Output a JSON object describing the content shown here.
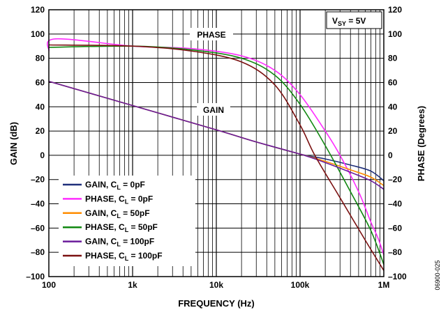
{
  "chart_data": {
    "type": "line",
    "xlabel": "FREQUENCY (Hz)",
    "ylabel_left": "GAIN (dB)",
    "ylabel_right": "PHASE (Degrees)",
    "x_scale": "log",
    "xlim": [
      100,
      1000000
    ],
    "ylim": [
      -100,
      120
    ],
    "grid": true,
    "x_ticks": [
      {
        "value": 100,
        "label": "100"
      },
      {
        "value": 1000,
        "label": "1k"
      },
      {
        "value": 10000,
        "label": "10k"
      },
      {
        "value": 100000,
        "label": "100k"
      },
      {
        "value": 1000000,
        "label": "1M"
      }
    ],
    "y_ticks_left": [
      "120",
      "100",
      "80",
      "60",
      "40",
      "20",
      "0",
      "–20",
      "–40",
      "–60",
      "–80",
      "–100"
    ],
    "y_ticks_right": [
      "120",
      "100",
      "80",
      "60",
      "40",
      "20",
      "0",
      "–20",
      "–40",
      "–60",
      "–80",
      "–100"
    ],
    "y_tick_values": [
      120,
      100,
      80,
      60,
      40,
      20,
      0,
      -20,
      -40,
      -60,
      -80,
      -100
    ],
    "annotations": {
      "condition": "VSY = 5V",
      "phase_label": "PHASE",
      "gain_label": "GAIN",
      "figure_id": "06900-025"
    },
    "legend_position": "bottom-left",
    "series": [
      {
        "name": "GAIN, CL = 0pF",
        "color": "#1f2f7a",
        "x": [
          100,
          1000,
          10000,
          30000,
          100000,
          200000,
          400000,
          700000,
          1000000
        ],
        "y": [
          61,
          41,
          21,
          11,
          1,
          -3,
          -8,
          -13,
          -21
        ]
      },
      {
        "name": "PHASE, CL = 0pF",
        "color": "#ff2bff",
        "x": [
          100,
          120,
          1000,
          5000,
          20000,
          50000,
          100000,
          200000,
          300000,
          500000,
          700000,
          850000,
          1000000
        ],
        "y": [
          86,
          96,
          90,
          88,
          82,
          70,
          50,
          20,
          0,
          -30,
          -55,
          -68,
          -82
        ]
      },
      {
        "name": "GAIN, CL = 50pF",
        "color": "#ff8c00",
        "x": [
          100,
          1000,
          10000,
          30000,
          100000,
          200000,
          400000,
          700000,
          1000000
        ],
        "y": [
          61,
          41,
          21,
          11,
          1,
          -5,
          -12,
          -18,
          -25
        ]
      },
      {
        "name": "PHASE, CL = 50pF",
        "color": "#118811",
        "x": [
          100,
          1000,
          5000,
          20000,
          50000,
          100000,
          200000,
          400000,
          700000,
          1000000
        ],
        "y": [
          89,
          90,
          87,
          80,
          66,
          42,
          8,
          -30,
          -62,
          -90
        ]
      },
      {
        "name": "GAIN, CL = 100pF",
        "color": "#6a1b9a",
        "x": [
          100,
          1000,
          10000,
          30000,
          100000,
          200000,
          400000,
          700000,
          1000000
        ],
        "y": [
          61,
          41,
          21,
          11,
          1,
          -6,
          -14,
          -21,
          -28
        ]
      },
      {
        "name": "PHASE, CL = 100pF",
        "color": "#7a1010",
        "x": [
          100,
          1000,
          5000,
          20000,
          50000,
          100000,
          150000,
          300000,
          600000,
          1000000
        ],
        "y": [
          91,
          90,
          86,
          77,
          58,
          25,
          0,
          -35,
          -70,
          -95
        ]
      }
    ],
    "legend": [
      {
        "main": "GAIN, C",
        "sub": "L",
        "rest": " = 0pF"
      },
      {
        "main": "PHASE, C",
        "sub": "L",
        "rest": " = 0pF"
      },
      {
        "main": "GAIN, C",
        "sub": "L",
        "rest": " = 50pF"
      },
      {
        "main": "PHASE, C",
        "sub": "L",
        "rest": " = 50pF"
      },
      {
        "main": "GAIN, C",
        "sub": "L",
        "rest": " = 100pF"
      },
      {
        "main": "PHASE, C",
        "sub": "L",
        "rest": " = 100pF"
      }
    ],
    "condition_text": {
      "main": "V",
      "sub": "SY",
      "rest": " = 5V"
    }
  }
}
